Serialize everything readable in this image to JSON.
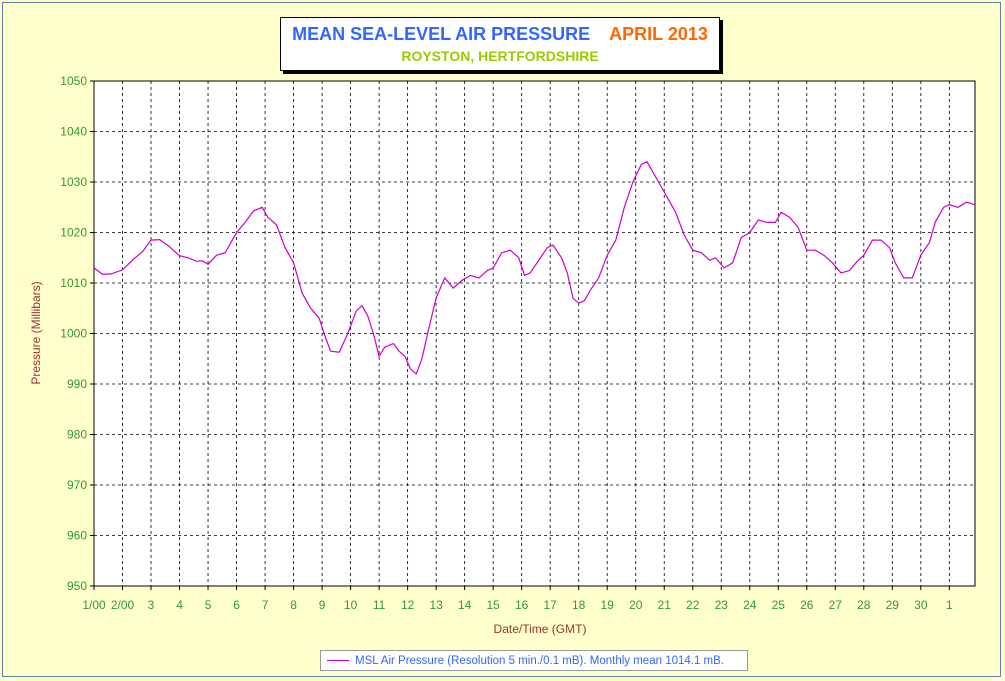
{
  "chart_data": {
    "type": "line",
    "title": "MEAN SEA-LEVEL AIR PRESSURE",
    "title_period": "APRIL 2013",
    "subtitle": "ROYSTON, HERTFORDSHIRE",
    "xlabel": "Date/Time (GMT)",
    "ylabel": "Pressure (Millibars)",
    "ylim": [
      950,
      1050
    ],
    "yticks": [
      950,
      960,
      970,
      980,
      990,
      1000,
      1010,
      1020,
      1030,
      1040,
      1050
    ],
    "xlim": [
      1,
      31.9
    ],
    "xticks": [
      1,
      2,
      3,
      4,
      5,
      6,
      7,
      8,
      9,
      10,
      11,
      12,
      13,
      14,
      15,
      16,
      17,
      18,
      19,
      20,
      21,
      22,
      23,
      24,
      25,
      26,
      27,
      28,
      29,
      30,
      31
    ],
    "xticklabels": [
      "1/00",
      "2/00",
      "3",
      "4",
      "5",
      "6",
      "7",
      "8",
      "9",
      "10",
      "11",
      "12",
      "13",
      "14",
      "15",
      "16",
      "17",
      "18",
      "19",
      "20",
      "21",
      "22",
      "23",
      "24",
      "25",
      "26",
      "27",
      "28",
      "29",
      "30",
      "1"
    ],
    "grid": true,
    "legend_position": "bottom-center",
    "series": [
      {
        "name": "MSL Air Pressure (Resolution 5 min./0.1 mB). Monthly mean 1014.1 mB.",
        "color": "#cc00cc",
        "x": [
          1.0,
          1.3,
          1.6,
          2.0,
          2.4,
          2.7,
          3.0,
          3.3,
          3.6,
          4.0,
          4.3,
          4.6,
          4.8,
          5.0,
          5.3,
          5.6,
          6.0,
          6.3,
          6.6,
          6.9,
          7.1,
          7.4,
          7.7,
          8.0,
          8.3,
          8.6,
          8.9,
          9.1,
          9.3,
          9.6,
          9.9,
          10.2,
          10.4,
          10.6,
          10.8,
          11.0,
          11.2,
          11.5,
          11.7,
          11.9,
          12.1,
          12.3,
          12.5,
          12.7,
          13.0,
          13.3,
          13.6,
          13.9,
          14.2,
          14.5,
          14.8,
          15.0,
          15.3,
          15.6,
          15.9,
          16.1,
          16.3,
          16.6,
          16.9,
          17.1,
          17.4,
          17.6,
          17.8,
          18.0,
          18.2,
          18.4,
          18.7,
          19.0,
          19.3,
          19.6,
          19.9,
          20.2,
          20.4,
          20.6,
          20.9,
          21.1,
          21.4,
          21.7,
          22.0,
          22.3,
          22.6,
          22.8,
          23.1,
          23.4,
          23.7,
          24.0,
          24.3,
          24.6,
          24.9,
          25.1,
          25.4,
          25.7,
          26.0,
          26.3,
          26.6,
          26.9,
          27.2,
          27.5,
          27.8,
          28.0,
          28.3,
          28.6,
          28.9,
          29.1,
          29.4,
          29.7,
          30.0,
          30.3,
          30.5,
          30.8,
          31.0,
          31.3,
          31.6,
          31.9
        ],
        "y": [
          1013.0,
          1011.7,
          1011.8,
          1012.6,
          1014.8,
          1016.2,
          1018.5,
          1018.6,
          1017.4,
          1015.4,
          1015.0,
          1014.3,
          1014.4,
          1013.7,
          1015.5,
          1016.0,
          1020.0,
          1022.0,
          1024.3,
          1025.0,
          1023.0,
          1021.5,
          1017.0,
          1014.0,
          1008.0,
          1005.0,
          1003.0,
          999.5,
          996.5,
          996.3,
          1000.0,
          1004.5,
          1005.5,
          1003.5,
          1000.0,
          995.5,
          997.3,
          998.0,
          996.5,
          995.5,
          993.0,
          992.0,
          995.0,
          1000.0,
          1007.0,
          1011.0,
          1009.0,
          1010.5,
          1011.5,
          1011.0,
          1012.5,
          1013.0,
          1016.0,
          1016.5,
          1015.0,
          1011.5,
          1012.0,
          1014.5,
          1017.0,
          1017.5,
          1015.0,
          1012.0,
          1007.0,
          1006.0,
          1006.5,
          1008.5,
          1011.0,
          1015.5,
          1018.5,
          1025.0,
          1030.0,
          1033.5,
          1034.0,
          1032.0,
          1029.0,
          1027.0,
          1024.0,
          1019.5,
          1016.5,
          1016.0,
          1014.5,
          1015.0,
          1013.0,
          1014.0,
          1019.0,
          1020.0,
          1022.5,
          1022.0,
          1022.0,
          1024.0,
          1023.0,
          1021.0,
          1016.5,
          1016.5,
          1015.5,
          1014.0,
          1012.0,
          1012.5,
          1014.5,
          1015.5,
          1018.5,
          1018.5,
          1017.0,
          1014.0,
          1011.0,
          1011.0,
          1015.5,
          1018.0,
          1022.0,
          1025.0,
          1025.5,
          1025.0,
          1026.0,
          1025.5
        ]
      }
    ]
  }
}
